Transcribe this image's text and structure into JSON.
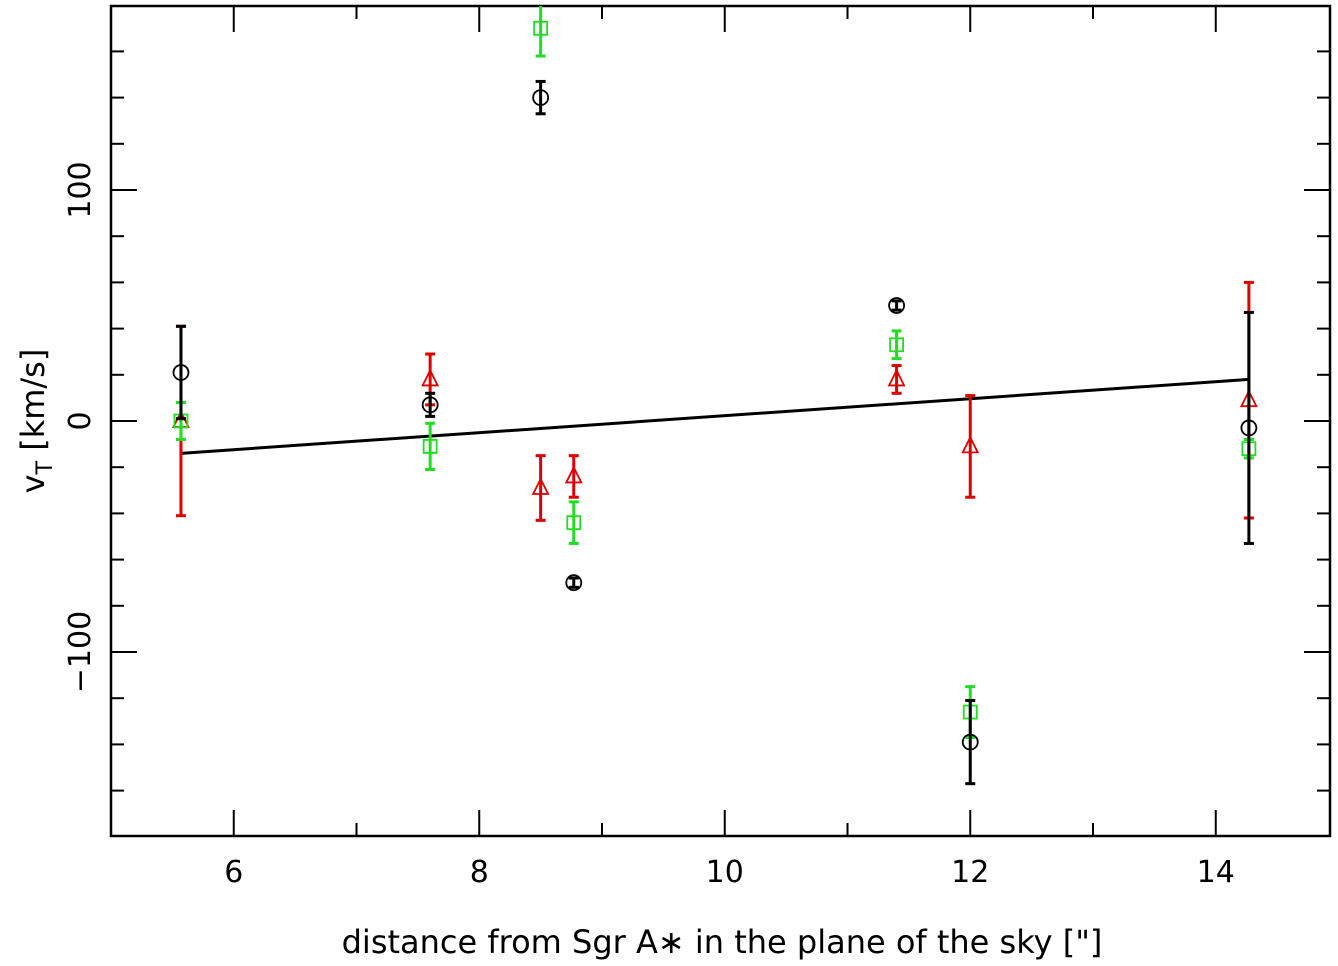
{
  "chart_data": {
    "type": "scatter",
    "title": "",
    "xlabel": "distance from Sgr A∗ in the plane of the sky [\"]",
    "ylabel_main": "v",
    "ylabel_sub": "T",
    "ylabel_rest": " [km/s]",
    "xlim": [
      5,
      15
    ],
    "ylim": [
      -180,
      180
    ],
    "x_ticks_major": [
      6,
      8,
      10,
      12,
      14
    ],
    "x_ticks_minor": [
      5,
      7,
      9,
      11,
      13,
      15
    ],
    "y_ticks_major": [
      -100,
      0,
      100
    ],
    "y_ticks_minor": [
      -160,
      -140,
      -120,
      -80,
      -60,
      -40,
      -20,
      20,
      40,
      60,
      80,
      120,
      140,
      160
    ],
    "x_tick_labels": [
      "6",
      "8",
      "10",
      "12",
      "14"
    ],
    "y_tick_labels": [
      "−100",
      "0",
      "100"
    ],
    "grid": false,
    "series": [
      {
        "marker": "circle",
        "color": "#000000",
        "points": [
          {
            "x": 5.57,
            "y": 21,
            "err_lo": 20,
            "err_hi": 20
          },
          {
            "x": 7.6,
            "y": 7,
            "err_lo": 5,
            "err_hi": 5
          },
          {
            "x": 8.5,
            "y": 140,
            "err_lo": 7,
            "err_hi": 7
          },
          {
            "x": 8.77,
            "y": -70,
            "err_lo": 2,
            "err_hi": 2
          },
          {
            "x": 11.4,
            "y": 50,
            "err_lo": 2,
            "err_hi": 2
          },
          {
            "x": 12.0,
            "y": -139,
            "err_lo": 18,
            "err_hi": 18
          },
          {
            "x": 14.27,
            "y": -3,
            "err_lo": 50,
            "err_hi": 50
          }
        ]
      },
      {
        "marker": "square",
        "color": "#22dd22",
        "points": [
          {
            "x": 5.57,
            "y": 0,
            "err_lo": 8,
            "err_hi": 8
          },
          {
            "x": 7.6,
            "y": -11,
            "err_lo": 10,
            "err_hi": 10
          },
          {
            "x": 8.5,
            "y": 170,
            "err_lo": 12,
            "err_hi": 12
          },
          {
            "x": 8.77,
            "y": -44,
            "err_lo": 9,
            "err_hi": 9
          },
          {
            "x": 11.4,
            "y": 33,
            "err_lo": 6,
            "err_hi": 6
          },
          {
            "x": 12.0,
            "y": -126,
            "err_lo": 11,
            "err_hi": 11
          },
          {
            "x": 14.27,
            "y": -12,
            "err_lo": 4,
            "err_hi": 4
          }
        ]
      },
      {
        "marker": "triangle",
        "color": "#dd0000",
        "points": [
          {
            "x": 5.57,
            "y": 0,
            "err_lo": 41,
            "err_hi": 41
          },
          {
            "x": 7.6,
            "y": 18,
            "err_lo": 11,
            "err_hi": 11
          },
          {
            "x": 8.5,
            "y": -29,
            "err_lo": 14,
            "err_hi": 14
          },
          {
            "x": 8.77,
            "y": -24,
            "err_lo": 9,
            "err_hi": 9
          },
          {
            "x": 11.4,
            "y": 18,
            "err_lo": 6,
            "err_hi": 6
          },
          {
            "x": 12.0,
            "y": -11,
            "err_lo": 22,
            "err_hi": 22
          },
          {
            "x": 14.27,
            "y": 9,
            "err_lo": 51,
            "err_hi": 51
          }
        ]
      }
    ],
    "fit_line": {
      "color": "#000000",
      "x": [
        5.57,
        14.27
      ],
      "y": [
        -14,
        18
      ]
    }
  }
}
